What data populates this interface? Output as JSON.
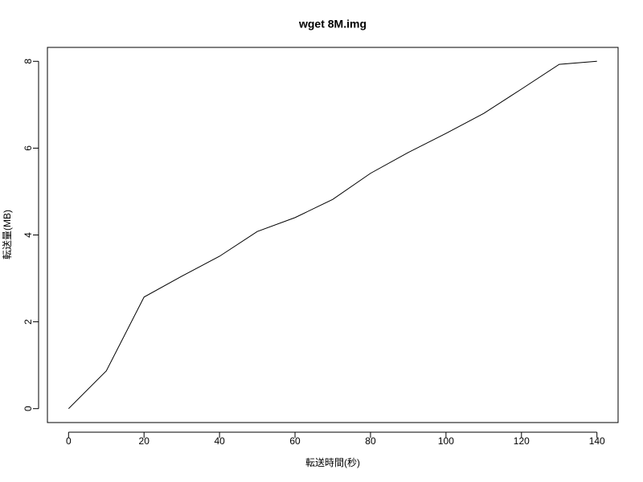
{
  "chart_data": {
    "type": "line",
    "title": "wget 8M.img",
    "x_label": "転送時間(秒)",
    "y_label": "転送量(MB)",
    "x": [
      0,
      10,
      20,
      30,
      40,
      50,
      60,
      70,
      80,
      90,
      100,
      110,
      120,
      130,
      140
    ],
    "series": [
      {
        "color": "#000000",
        "values": [
          0,
          0.87,
          2.57,
          3.05,
          3.51,
          4.08,
          4.4,
          4.82,
          5.42,
          5.9,
          6.34,
          6.8,
          7.36,
          7.93,
          8.0
        ]
      }
    ],
    "xlim": [
      -5.6,
      145.6
    ],
    "ylim": [
      -0.32,
      8.32
    ],
    "xticks": [
      0,
      20,
      40,
      60,
      80,
      100,
      120,
      140
    ],
    "yticks": [
      0,
      2,
      4,
      6,
      8
    ]
  }
}
